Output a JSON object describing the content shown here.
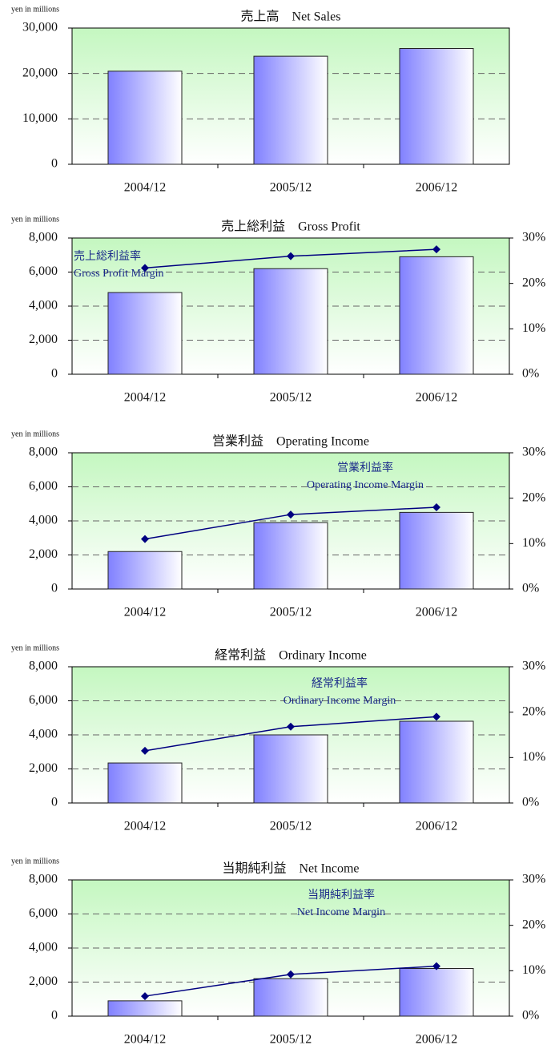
{
  "chart_data": [
    {
      "type": "bar",
      "title": "売上高　Net Sales",
      "unit_label": "yen in millions",
      "categories": [
        "2004/12",
        "2005/12",
        "2006/12"
      ],
      "series": [
        {
          "color": "#8080ff",
          "values": [
            20500,
            23800,
            25500
          ]
        }
      ],
      "ylim": [
        0,
        30000
      ],
      "yticks": [
        0,
        {
          "value": 10000,
          "label": "10,000"
        },
        {
          "value": 20000,
          "label": "20,000"
        },
        {
          "value": 30000,
          "label": "30,000"
        }
      ],
      "grid": true
    },
    {
      "type": "bar",
      "title": "売上総利益　Gross Profit",
      "unit_label": "yen in millions",
      "categories": [
        "2004/12",
        "2005/12",
        "2006/12"
      ],
      "series": [
        {
          "color": "#8080ff",
          "values": [
            4800,
            6200,
            6900
          ]
        },
        {
          "color": "#000080",
          "axis": "y2",
          "values": [
            23.4,
            26.0,
            27.5
          ]
        }
      ],
      "annotations": [
        "売上総利益率",
        "Gross Profit Margin"
      ],
      "ylim": [
        0,
        8000
      ],
      "yticks": [
        0,
        {
          "value": 2000,
          "label": "2,000"
        },
        {
          "value": 4000,
          "label": "4,000"
        },
        {
          "value": 6000,
          "label": "6,000"
        },
        {
          "value": 8000,
          "label": "8,000"
        }
      ],
      "y2lim": [
        0,
        30
      ],
      "y2ticks": [
        {
          "value": 0,
          "label": "0%"
        },
        {
          "value": 10,
          "label": "10%"
        },
        {
          "value": 20,
          "label": "20%"
        },
        {
          "value": 30,
          "label": "30%"
        }
      ],
      "grid": true
    },
    {
      "type": "bar",
      "title": "営業利益　Operating Income",
      "unit_label": "yen in millions",
      "categories": [
        "2004/12",
        "2005/12",
        "2006/12"
      ],
      "series": [
        {
          "color": "#8080ff",
          "values": [
            2200,
            3900,
            4500
          ]
        },
        {
          "color": "#000080",
          "axis": "y2",
          "values": [
            11.0,
            16.4,
            18.0
          ]
        }
      ],
      "annotations": [
        "営業利益率",
        "Operating Income Margin"
      ],
      "ylim": [
        0,
        8000
      ],
      "yticks": [
        0,
        {
          "value": 2000,
          "label": "2,000"
        },
        {
          "value": 4000,
          "label": "4,000"
        },
        {
          "value": 6000,
          "label": "6,000"
        },
        {
          "value": 8000,
          "label": "8,000"
        }
      ],
      "y2lim": [
        0,
        30
      ],
      "y2ticks": [
        {
          "value": 0,
          "label": "0%"
        },
        {
          "value": 10,
          "label": "10%"
        },
        {
          "value": 20,
          "label": "20%"
        },
        {
          "value": 30,
          "label": "30%"
        }
      ],
      "grid": true
    },
    {
      "type": "bar",
      "title": "経常利益　Ordinary Income",
      "unit_label": "yen in millions",
      "categories": [
        "2004/12",
        "2005/12",
        "2006/12"
      ],
      "series": [
        {
          "color": "#8080ff",
          "values": [
            2350,
            4000,
            4800
          ]
        },
        {
          "color": "#000080",
          "axis": "y2",
          "values": [
            11.5,
            16.8,
            19.0
          ]
        }
      ],
      "annotations": [
        "経常利益率",
        "Ordinary Income Margin"
      ],
      "ylim": [
        0,
        8000
      ],
      "yticks": [
        0,
        {
          "value": 2000,
          "label": "2,000"
        },
        {
          "value": 4000,
          "label": "4,000"
        },
        {
          "value": 6000,
          "label": "6,000"
        },
        {
          "value": 8000,
          "label": "8,000"
        }
      ],
      "y2lim": [
        0,
        30
      ],
      "y2ticks": [
        {
          "value": 0,
          "label": "0%"
        },
        {
          "value": 10,
          "label": "10%"
        },
        {
          "value": 20,
          "label": "20%"
        },
        {
          "value": 30,
          "label": "30%"
        }
      ],
      "grid": true
    },
    {
      "type": "bar",
      "title": "当期純利益　Net Income",
      "unit_label": "yen in millions",
      "categories": [
        "2004/12",
        "2005/12",
        "2006/12"
      ],
      "series": [
        {
          "color": "#8080ff",
          "values": [
            900,
            2200,
            2800
          ]
        },
        {
          "color": "#000080",
          "axis": "y2",
          "values": [
            4.4,
            9.2,
            11.0
          ]
        }
      ],
      "annotations": [
        "当期純利益率",
        "Net Income Margin"
      ],
      "ylim": [
        0,
        8000
      ],
      "yticks": [
        0,
        {
          "value": 2000,
          "label": "2,000"
        },
        {
          "value": 4000,
          "label": "4,000"
        },
        {
          "value": 6000,
          "label": "6,000"
        },
        {
          "value": 8000,
          "label": "8,000"
        }
      ],
      "y2lim": [
        0,
        30
      ],
      "y2ticks": [
        {
          "value": 0,
          "label": "0%"
        },
        {
          "value": 10,
          "label": "10%"
        },
        {
          "value": 20,
          "label": "20%"
        },
        {
          "value": 30,
          "label": "30%"
        }
      ],
      "grid": true
    }
  ]
}
